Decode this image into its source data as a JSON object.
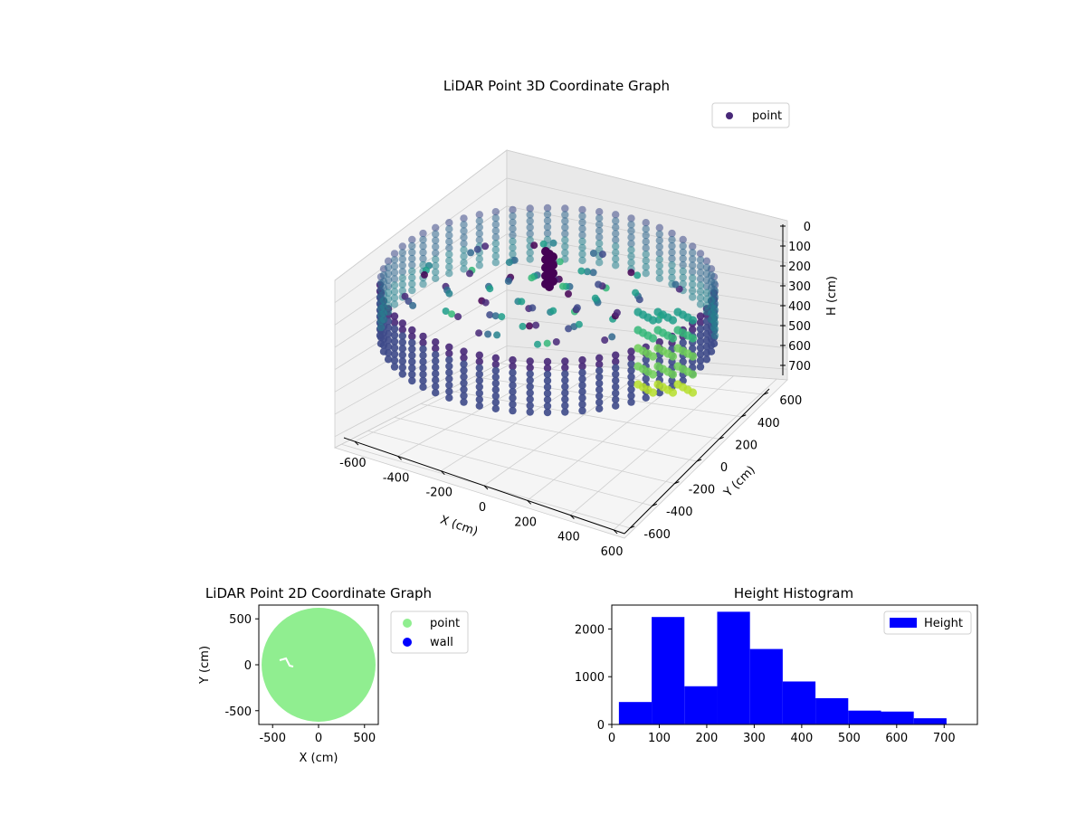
{
  "chart_data": [
    {
      "type": "scatter",
      "title": "LiDAR Point 3D Coordinate Graph",
      "xlabel": "X (cm)",
      "ylabel": "Y (cm)",
      "zlabel": "H (cm)",
      "xlim": [
        -650,
        650
      ],
      "ylim": [
        -650,
        650
      ],
      "zlim": [
        750,
        0
      ],
      "x_ticks": [
        -600,
        -400,
        -200,
        0,
        200,
        400,
        600
      ],
      "y_ticks": [
        -600,
        -400,
        -200,
        0,
        200,
        400,
        600
      ],
      "z_ticks": [
        0,
        100,
        200,
        300,
        400,
        500,
        600,
        700
      ],
      "grid": true,
      "colormap": "viridis",
      "legend": {
        "position": "top-right",
        "entries": [
          {
            "label": "point",
            "color": "#482878"
          }
        ]
      }
    },
    {
      "type": "scatter",
      "title": "LiDAR Point 2D Coordinate Graph",
      "xlabel": "X (cm)",
      "ylabel": "Y (cm)",
      "xlim": [
        -650,
        650
      ],
      "ylim": [
        -650,
        650
      ],
      "x_ticks": [
        -500,
        0,
        500
      ],
      "y_ticks": [
        -500,
        0,
        500
      ],
      "series": [
        {
          "name": "point",
          "color": "#90ee90",
          "shape": "disc",
          "radius": 620
        },
        {
          "name": "wall",
          "color": "#0000ff",
          "values": []
        }
      ],
      "legend": {
        "position": "outside right",
        "entries": [
          {
            "label": "point",
            "color": "#90ee90"
          },
          {
            "label": "wall",
            "color": "#0000ff"
          }
        ]
      }
    },
    {
      "type": "bar",
      "title": "Height Histogram",
      "series_name": "Height",
      "color": "#0000ff",
      "bin_edges": [
        15,
        84,
        153,
        222,
        291,
        360,
        429,
        498,
        567,
        636,
        705
      ],
      "values": [
        470,
        2250,
        800,
        2360,
        1580,
        900,
        550,
        290,
        270,
        130
      ],
      "xlim": [
        0,
        770
      ],
      "ylim": [
        0,
        2500
      ],
      "x_ticks": [
        0,
        100,
        200,
        300,
        400,
        500,
        600,
        700
      ],
      "y_ticks": [
        0,
        1000,
        2000
      ],
      "legend": {
        "position": "top-right",
        "entries": [
          {
            "label": "Height",
            "color": "#0000ff"
          }
        ]
      }
    }
  ]
}
